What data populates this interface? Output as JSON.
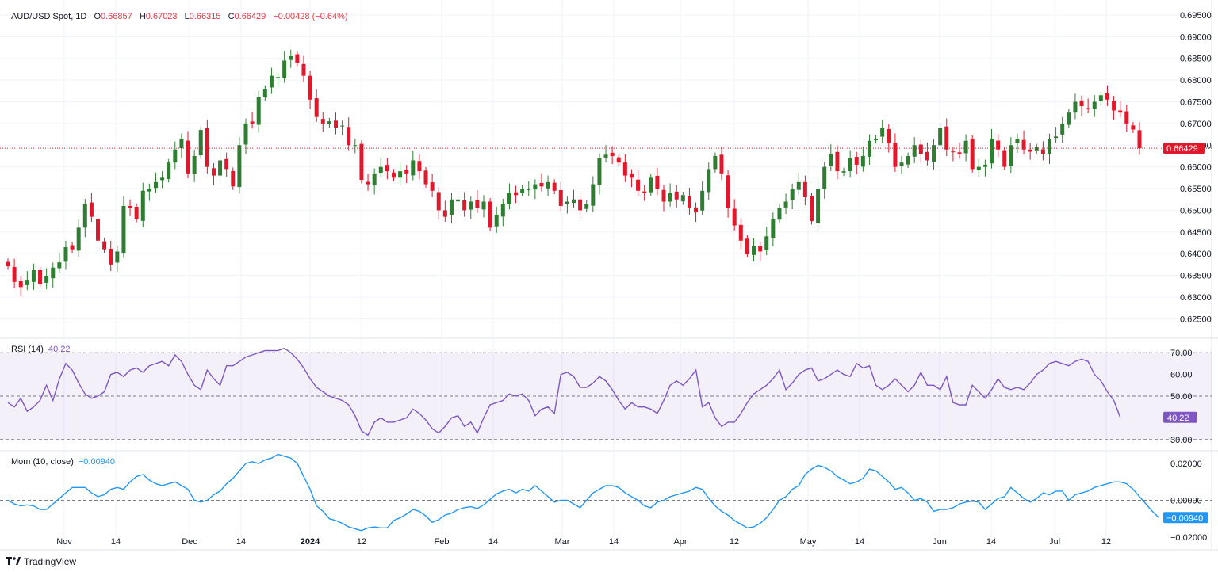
{
  "header": {
    "symbol": "AUD/USD Spot, 1D",
    "o_label": "O",
    "o": "0.66857",
    "h_label": "H",
    "h": "0.67023",
    "l_label": "L",
    "l": "0.66315",
    "c_label": "C",
    "c": "0.66429",
    "change": "−0.00428 (−0.64%)"
  },
  "rsi_header": {
    "label": "RSI (14)",
    "value": "40.22"
  },
  "mom_header": {
    "label": "Mom (10, close)",
    "value": "−0.00940"
  },
  "brand": {
    "name": "TradingView"
  },
  "colors": {
    "up": "#2e7d32",
    "down": "#e2172b",
    "rsi": "#7e57c2",
    "mom": "#2196f3",
    "price_tag": "#e2172b"
  },
  "chart_data": [
    {
      "type": "candlestick",
      "title": "AUD/USD Spot, 1D",
      "x_ticks": [
        "Nov",
        "14",
        "Dec",
        "14",
        "2024",
        "12",
        "Feb",
        "14",
        "Mar",
        "14",
        "Apr",
        "12",
        "May",
        "14",
        "Jun",
        "14",
        "Jul",
        "12"
      ],
      "y_ticks": [
        "0.69500",
        "0.69000",
        "0.68500",
        "0.68000",
        "0.67500",
        "0.67000",
        "0.66500",
        "0.66000",
        "0.65500",
        "0.65000",
        "0.64500",
        "0.64000",
        "0.63500",
        "0.63000",
        "0.62500"
      ],
      "ylim": [
        0.6205,
        0.697
      ],
      "last_price": 0.66429,
      "last_price_label": "0.66429",
      "closes": [
        0.6371,
        0.6335,
        0.6323,
        0.6338,
        0.6362,
        0.633,
        0.6348,
        0.6368,
        0.638,
        0.6415,
        0.641,
        0.646,
        0.6515,
        0.6485,
        0.643,
        0.641,
        0.6375,
        0.6405,
        0.651,
        0.6505,
        0.648,
        0.6545,
        0.655,
        0.6565,
        0.6575,
        0.661,
        0.664,
        0.6665,
        0.6585,
        0.6625,
        0.6685,
        0.66,
        0.658,
        0.6615,
        0.6595,
        0.6555,
        0.665,
        0.67,
        0.67,
        0.676,
        0.678,
        0.681,
        0.6807,
        0.6845,
        0.6855,
        0.684,
        0.681,
        0.6755,
        0.6715,
        0.67,
        0.6705,
        0.669,
        0.6695,
        0.665,
        0.665,
        0.657,
        0.656,
        0.6585,
        0.66,
        0.659,
        0.6575,
        0.659,
        0.6585,
        0.6615,
        0.659,
        0.656,
        0.6545,
        0.65,
        0.6485,
        0.6525,
        0.6525,
        0.65,
        0.652,
        0.6505,
        0.652,
        0.646,
        0.649,
        0.6515,
        0.654,
        0.6535,
        0.655,
        0.6548,
        0.656,
        0.6555,
        0.6565,
        0.6545,
        0.651,
        0.652,
        0.6525,
        0.65,
        0.6515,
        0.656,
        0.662,
        0.6628,
        0.6625,
        0.661,
        0.658,
        0.6575,
        0.6545,
        0.654,
        0.6575,
        0.655,
        0.652,
        0.654,
        0.6525,
        0.6535,
        0.6505,
        0.6495,
        0.6545,
        0.6595,
        0.6625,
        0.6585,
        0.6505,
        0.6465,
        0.643,
        0.64,
        0.6417,
        0.6405,
        0.644,
        0.648,
        0.6505,
        0.652,
        0.655,
        0.6565,
        0.653,
        0.6475,
        0.655,
        0.66,
        0.663,
        0.659,
        0.659,
        0.662,
        0.6605,
        0.6625,
        0.666,
        0.6665,
        0.669,
        0.6655,
        0.66,
        0.661,
        0.6625,
        0.665,
        0.663,
        0.6615,
        0.665,
        0.669,
        0.664,
        0.6635,
        0.663,
        0.666,
        0.6595,
        0.66,
        0.6605,
        0.6665,
        0.664,
        0.66,
        0.665,
        0.6665,
        0.664,
        0.6635,
        0.6645,
        0.663,
        0.6665,
        0.667,
        0.67,
        0.6725,
        0.675,
        0.674,
        0.6735,
        0.675,
        0.6765,
        0.6755,
        0.673,
        0.6725,
        0.67,
        0.6686,
        0.6643
      ]
    },
    {
      "type": "line",
      "name": "RSI (14)",
      "y_ticks": [
        "70.00",
        "60.00",
        "50.00",
        "40.22",
        "30.00"
      ],
      "ylim": [
        27,
        73
      ],
      "levels": [
        70,
        50,
        30
      ],
      "last_value": 40.22,
      "values": [
        47.0,
        45.0,
        49.0,
        43.0,
        45.0,
        48.0,
        55.0,
        48.0,
        58.0,
        65.0,
        62.0,
        56.0,
        51.0,
        49.0,
        50.0,
        52.0,
        60.0,
        61.0,
        59.0,
        62.0,
        63.0,
        61.0,
        64.0,
        65.0,
        66.0,
        64.0,
        69.0,
        66.0,
        60.0,
        55.0,
        53.0,
        62.0,
        58.0,
        55.0,
        64.0,
        64.0,
        66.0,
        68.0,
        69.0,
        70.0,
        71.0,
        71.0,
        71.0,
        72.0,
        70.0,
        67.0,
        63.0,
        58.0,
        54.0,
        52.0,
        50.0,
        49.0,
        48.0,
        46.0,
        41.0,
        34.0,
        32.0,
        38.0,
        40.0,
        38.0,
        38.0,
        39.0,
        40.0,
        44.0,
        42.0,
        39.0,
        35.0,
        33.0,
        36.0,
        40.0,
        41.0,
        36.0,
        38.0,
        33.0,
        40.0,
        46.0,
        47.0,
        48.0,
        51.0,
        50.0,
        51.0,
        48.0,
        41.0,
        44.0,
        45.0,
        42.0,
        60.0,
        61.0,
        59.0,
        54.0,
        54.0,
        56.0,
        59.0,
        57.0,
        53.0,
        48.0,
        44.0,
        47.0,
        45.0,
        45.0,
        44.0,
        42.0,
        48.0,
        55.0,
        57.0,
        55.0,
        58.0,
        62.0,
        45.0,
        47.0,
        40.0,
        36.0,
        38.0,
        38.0,
        42.0,
        47.0,
        51.0,
        53.0,
        55.0,
        58.0,
        62.0,
        53.0,
        56.0,
        60.0,
        62.0,
        63.0,
        57.0,
        58.0,
        60.0,
        62.0,
        60.0,
        59.0,
        65.0,
        63.0,
        64.0,
        55.0,
        53.0,
        55.0,
        58.0,
        55.0,
        52.0,
        55.0,
        61.0,
        55.0,
        55.0,
        53.0,
        59.0,
        47.0,
        46.0,
        46.0,
        55.0,
        52.0,
        49.0,
        53.0,
        58.0,
        54.0,
        53.0,
        54.0,
        53.0,
        56.0,
        60.0,
        62.0,
        65.0,
        66.0,
        65.0,
        64.0,
        66.0,
        67.0,
        66.0,
        60.0,
        57.0,
        52.0,
        48.0,
        40.22
      ]
    },
    {
      "type": "line",
      "name": "Mom (10, close)",
      "y_ticks": [
        "0.02000",
        "0.00000",
        "-0.00940",
        "-0.02000"
      ],
      "ylim": [
        -0.0235,
        0.0235
      ],
      "levels": [
        0
      ],
      "last_value": -0.0094,
      "values": [
        0.0,
        -0.002,
        -0.003,
        -0.0025,
        -0.003,
        -0.005,
        -0.005,
        -0.002,
        0.001,
        0.004,
        0.007,
        0.007,
        0.007,
        0.004,
        0.002,
        0.003,
        0.006,
        0.007,
        0.006,
        0.01,
        0.013,
        0.014,
        0.011,
        0.009,
        0.008,
        0.009,
        0.01,
        0.008,
        0.006,
        0.0,
        -0.001,
        0.0,
        0.003,
        0.005,
        0.009,
        0.012,
        0.016,
        0.02,
        0.021,
        0.02,
        0.022,
        0.023,
        0.025,
        0.024,
        0.023,
        0.02,
        0.013,
        0.006,
        -0.003,
        -0.006,
        -0.01,
        -0.011,
        -0.0125,
        -0.0145,
        -0.0155,
        -0.0165,
        -0.015,
        -0.0145,
        -0.015,
        -0.015,
        -0.011,
        -0.0095,
        -0.0075,
        -0.005,
        -0.006,
        -0.0085,
        -0.012,
        -0.0105,
        -0.008,
        -0.007,
        -0.005,
        -0.004,
        -0.0035,
        -0.0045,
        -0.0025,
        0.0005,
        0.0035,
        0.005,
        0.006,
        0.004,
        0.006,
        0.005,
        0.008,
        0.005,
        0.002,
        -0.001,
        0.0,
        0.0,
        -0.002,
        -0.004,
        0.0,
        0.004,
        0.006,
        0.008,
        0.008,
        0.007,
        0.004,
        0.002,
        0.0,
        -0.003,
        -0.004,
        -0.001,
        0.0,
        0.002,
        0.003,
        0.004,
        0.005,
        0.007,
        0.006,
        0.001,
        -0.003,
        -0.006,
        -0.008,
        -0.011,
        -0.013,
        -0.015,
        -0.0145,
        -0.0125,
        -0.0095,
        -0.005,
        0.0,
        0.002,
        0.006,
        0.008,
        0.014,
        0.017,
        0.019,
        0.018,
        0.016,
        0.013,
        0.011,
        0.009,
        0.01,
        0.012,
        0.017,
        0.016,
        0.013,
        0.01,
        0.006,
        0.007,
        0.004,
        0.0,
        0.001,
        -0.001,
        -0.006,
        -0.005,
        -0.005,
        -0.004,
        -0.002,
        -0.001,
        -0.0005,
        -0.001,
        -0.005,
        -0.002,
        0.001,
        0.002,
        0.007,
        0.004,
        0.001,
        -0.001,
        0.001,
        0.004,
        0.003,
        0.005,
        0.005,
        0.0,
        0.003,
        0.004,
        0.005,
        0.007,
        0.008,
        0.009,
        0.01,
        0.01,
        0.009,
        0.006,
        0.002,
        -0.002,
        -0.006,
        -0.0094
      ]
    }
  ]
}
